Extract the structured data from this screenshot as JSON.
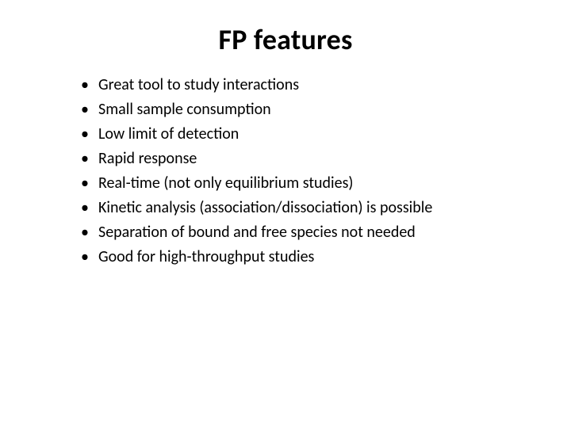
{
  "slide": {
    "title": "FP features",
    "bullets": [
      "Great tool to study interactions",
      "Small sample consumption",
      "Low limit of detection",
      "Rapid response",
      "Real-time (not only equilibrium studies)",
      "Kinetic analysis (association/dissociation) is possible",
      "Separation of bound and free species not needed",
      "Good for high-throughput studies"
    ],
    "title_fontsize": 36,
    "body_fontsize": 20,
    "text_color": "#000000",
    "background_color": "#ffffff"
  }
}
